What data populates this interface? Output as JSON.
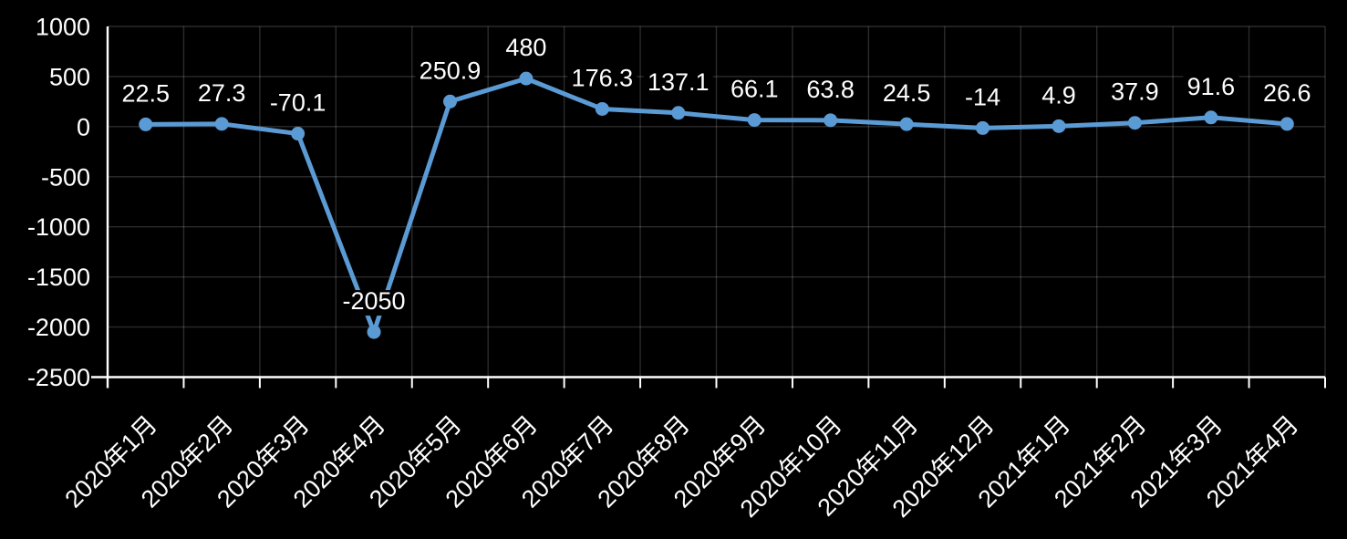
{
  "chart_data": {
    "type": "line",
    "title": "",
    "xlabel": "",
    "ylabel": "",
    "categories": [
      "2020年1月",
      "2020年2月",
      "2020年3月",
      "2020年4月",
      "2020年5月",
      "2020年6月",
      "2020年7月",
      "2020年8月",
      "2020年9月",
      "2020年10月",
      "2020年11月",
      "2020年12月",
      "2021年1月",
      "2021年2月",
      "2021年3月",
      "2021年4月"
    ],
    "values": [
      22.5,
      27.3,
      -70.1,
      -2050,
      250.9,
      480,
      176.3,
      137.1,
      66.1,
      63.8,
      24.5,
      -14,
      4.9,
      37.9,
      91.6,
      26.6
    ],
    "data_labels": [
      "22.5",
      "27.3",
      "-70.1",
      "-2050",
      "250.9",
      "480",
      "176.3",
      "137.1",
      "66.1",
      "63.8",
      "24.5",
      "-14",
      "4.9",
      "37.9",
      "91.6",
      "26.6"
    ],
    "ylim": [
      -2500,
      1000
    ],
    "y_ticks": [
      1000,
      500,
      0,
      -500,
      -1000,
      -1500,
      -2000,
      -2500
    ],
    "x_tick_rotation_deg": 45,
    "grid": true,
    "legend_visible": false,
    "data_labels_visible": true,
    "marker_style": "circle",
    "colors": {
      "background": "#000000",
      "series": "#5b9bd5",
      "gridline": "rgba(255,255,255,0.17)",
      "axis_line": "#ffffff",
      "axis_text": "#ffffff",
      "data_label_text": "#ffffff",
      "data_label_bg": "#000000"
    }
  }
}
